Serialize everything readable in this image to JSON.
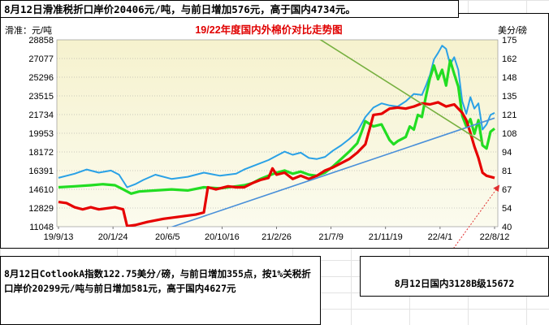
{
  "notes": {
    "top": "8月12日滑准税折口岸价20406元/吨，与前日增加576元，高于国内4734元。",
    "bottom_left": "8月12日CotlookA指数122.75美分/磅，与前日增加355点，按1%关税折口岸价20299元/吨与前日增加581元，高于国内4627元",
    "bottom_right": "8月12日国内3128B级15672"
  },
  "chart_data": {
    "type": "line",
    "title": "19/22年度国内外棉价对比走势图",
    "ylabel_left": "滑准：元/吨",
    "ylabel_right": "美分/磅",
    "left_ticks": [
      11048,
      12829,
      14610,
      16391,
      18172,
      19953,
      21734,
      23515,
      25296,
      27077,
      28858
    ],
    "right_ticks": [
      40,
      54,
      67,
      81,
      94,
      108,
      121,
      135,
      148,
      162,
      175
    ],
    "ylim_left": [
      11048,
      28858
    ],
    "ylim_right": [
      40,
      175
    ],
    "x_ticks": [
      "19/9/13",
      "20/1/24",
      "20/6/5",
      "20/10/16",
      "21/2/26",
      "21/7/9",
      "21/11/19",
      "22/4/1",
      "22/8/12"
    ],
    "series": [
      {
        "color": "#2aa1e6",
        "axis": "left",
        "values": [
          [
            0,
            15700
          ],
          [
            2,
            16100
          ],
          [
            3.5,
            16500
          ],
          [
            5,
            16200
          ],
          [
            6.5,
            16400
          ],
          [
            7.5,
            16000
          ],
          [
            8.5,
            14800
          ],
          [
            9.5,
            15100
          ],
          [
            10.5,
            15500
          ],
          [
            12,
            16000
          ],
          [
            14,
            15600
          ],
          [
            16,
            15800
          ],
          [
            18,
            16200
          ],
          [
            20,
            15900
          ],
          [
            22,
            16100
          ],
          [
            23,
            16500
          ],
          [
            24,
            16800
          ],
          [
            26,
            17400
          ],
          [
            27,
            17800
          ],
          [
            28,
            18200
          ],
          [
            29,
            17900
          ],
          [
            30,
            18100
          ],
          [
            31,
            17600
          ],
          [
            32,
            17500
          ],
          [
            33,
            17700
          ],
          [
            34,
            18300
          ],
          [
            35,
            18800
          ],
          [
            36,
            19400
          ],
          [
            37,
            20100
          ],
          [
            38,
            21500
          ],
          [
            39,
            22400
          ],
          [
            40,
            22800
          ],
          [
            41,
            22600
          ],
          [
            42,
            22500
          ],
          [
            43,
            23000
          ],
          [
            44,
            23700
          ],
          [
            45,
            23600
          ],
          [
            45.5,
            24500
          ],
          [
            46,
            25500
          ],
          [
            46.5,
            27000
          ],
          [
            47,
            27600
          ],
          [
            47.5,
            28300
          ],
          [
            48,
            28000
          ],
          [
            48.5,
            26500
          ],
          [
            49,
            27200
          ],
          [
            49.5,
            26000
          ],
          [
            50,
            23000
          ],
          [
            50.5,
            21800
          ],
          [
            51,
            23400
          ],
          [
            51.5,
            22300
          ],
          [
            52,
            22800
          ],
          [
            52.5,
            20300
          ],
          [
            53,
            20800
          ],
          [
            53.5,
            21700
          ],
          [
            54,
            21900
          ]
        ]
      },
      {
        "color": "#22dd22",
        "axis": "left",
        "values": [
          [
            0,
            14800
          ],
          [
            2,
            14900
          ],
          [
            4,
            15000
          ],
          [
            5.5,
            15100
          ],
          [
            7,
            15000
          ],
          [
            8,
            14600
          ],
          [
            9,
            14200
          ],
          [
            10,
            14400
          ],
          [
            12,
            14500
          ],
          [
            14,
            14600
          ],
          [
            16,
            14500
          ],
          [
            18,
            14800
          ],
          [
            20,
            14700
          ],
          [
            22,
            14900
          ],
          [
            23,
            15000
          ],
          [
            24,
            15200
          ],
          [
            25,
            15600
          ],
          [
            26,
            15900
          ],
          [
            27,
            16200
          ],
          [
            28,
            16400
          ],
          [
            29,
            16100
          ],
          [
            30,
            16300
          ],
          [
            31,
            16000
          ],
          [
            32,
            15900
          ],
          [
            33,
            16200
          ],
          [
            34,
            16800
          ],
          [
            35,
            17500
          ],
          [
            36,
            18200
          ],
          [
            37,
            19000
          ],
          [
            37.5,
            20000
          ],
          [
            38,
            21100
          ],
          [
            39,
            20600
          ],
          [
            40,
            20800
          ],
          [
            41,
            19300
          ],
          [
            41.5,
            18900
          ],
          [
            42,
            19200
          ],
          [
            43,
            19600
          ],
          [
            43.5,
            20600
          ],
          [
            44,
            20300
          ],
          [
            44.5,
            21700
          ],
          [
            45,
            21500
          ],
          [
            45.5,
            23500
          ],
          [
            46,
            25200
          ],
          [
            46.5,
            26400
          ],
          [
            47,
            25100
          ],
          [
            47.5,
            26000
          ],
          [
            48,
            24500
          ],
          [
            48.5,
            26900
          ],
          [
            49,
            25600
          ],
          [
            49.5,
            24400
          ],
          [
            50,
            21600
          ],
          [
            50.5,
            20600
          ],
          [
            51,
            21300
          ],
          [
            51.5,
            19900
          ],
          [
            52,
            21200
          ],
          [
            52.5,
            18800
          ],
          [
            53,
            18500
          ],
          [
            53.5,
            20100
          ],
          [
            54,
            20400
          ]
        ]
      },
      {
        "color": "#e60000",
        "axis": "left",
        "values": [
          [
            0,
            13400
          ],
          [
            1,
            13300
          ],
          [
            2,
            12900
          ],
          [
            3,
            12700
          ],
          [
            4,
            12900
          ],
          [
            5,
            12700
          ],
          [
            7,
            12900
          ],
          [
            8,
            12700
          ],
          [
            8.5,
            11100
          ],
          [
            9.5,
            11200
          ],
          [
            11,
            11500
          ],
          [
            13,
            11800
          ],
          [
            15,
            12000
          ],
          [
            17,
            12200
          ],
          [
            18,
            12400
          ],
          [
            18.5,
            14800
          ],
          [
            19.5,
            14600
          ],
          [
            21,
            14900
          ],
          [
            22,
            14800
          ],
          [
            23,
            14800
          ],
          [
            24,
            15200
          ],
          [
            25,
            15500
          ],
          [
            26,
            15700
          ],
          [
            26.5,
            16600
          ],
          [
            27,
            16000
          ],
          [
            28,
            16200
          ],
          [
            29,
            15600
          ],
          [
            30,
            15900
          ],
          [
            31,
            15600
          ],
          [
            32,
            15900
          ],
          [
            33,
            16400
          ],
          [
            34,
            16700
          ],
          [
            35,
            17100
          ],
          [
            36,
            17500
          ],
          [
            37,
            18100
          ],
          [
            38,
            18900
          ],
          [
            38.5,
            20300
          ],
          [
            39,
            21700
          ],
          [
            40,
            21800
          ],
          [
            41,
            22300
          ],
          [
            42,
            22400
          ],
          [
            43,
            22300
          ],
          [
            44,
            22500
          ],
          [
            45,
            22800
          ],
          [
            46,
            22700
          ],
          [
            47,
            22900
          ],
          [
            48,
            22500
          ],
          [
            49,
            22700
          ],
          [
            50,
            21900
          ],
          [
            50.5,
            21200
          ],
          [
            51,
            20000
          ],
          [
            51.5,
            18700
          ],
          [
            52,
            17600
          ],
          [
            52.5,
            16200
          ],
          [
            53,
            15900
          ],
          [
            54,
            15700
          ]
        ]
      }
    ],
    "trendlines": [
      {
        "color": "#4a90d9",
        "from": [
          0.5,
          7500
        ],
        "to": [
          54,
          21400
        ]
      },
      {
        "color": "#77b040",
        "from": [
          29.5,
          30300
        ],
        "to": [
          52.5,
          19100
        ]
      }
    ]
  }
}
